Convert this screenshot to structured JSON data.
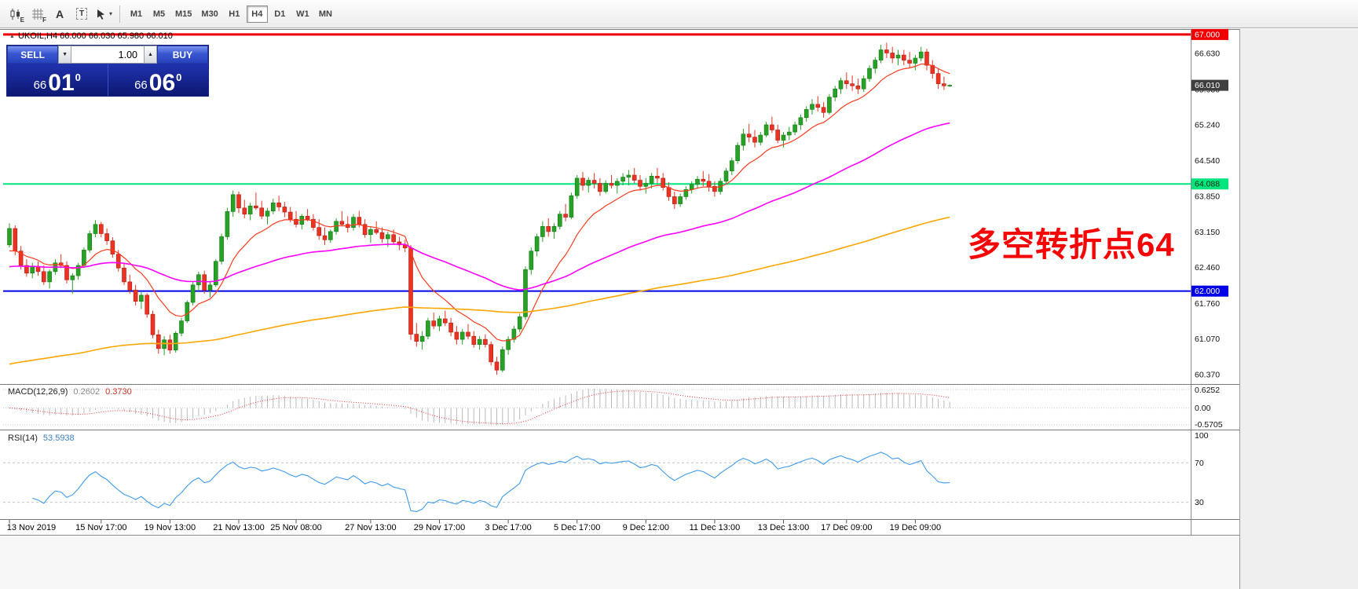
{
  "toolbar": {
    "icons": [
      {
        "name": "candlestick-chart",
        "kind": "candles",
        "badge": "E"
      },
      {
        "name": "grid",
        "kind": "grid",
        "badge": "F"
      },
      {
        "name": "text-tool",
        "kind": "letter",
        "glyph": "A"
      },
      {
        "name": "label-tool",
        "kind": "boxed",
        "glyph": "T"
      },
      {
        "name": "cursor-tool",
        "kind": "cursor",
        "caret": "▾"
      }
    ],
    "timeframes": [
      {
        "label": "M1",
        "active": false
      },
      {
        "label": "M5",
        "active": false
      },
      {
        "label": "M15",
        "active": false
      },
      {
        "label": "M30",
        "active": false
      },
      {
        "label": "H1",
        "active": false
      },
      {
        "label": "H4",
        "active": true
      },
      {
        "label": "D1",
        "active": false
      },
      {
        "label": "W1",
        "active": false
      },
      {
        "label": "MN",
        "active": false
      }
    ]
  },
  "chart_header": {
    "icon_glyph": "▲",
    "text": "UKOIL,H4  66.000 66.030 65.980 66.010"
  },
  "trade_panel": {
    "sell_label": "SELL",
    "buy_label": "BUY",
    "volume": "1.00",
    "spin_down_glyph": "▼",
    "spin_up_glyph": "▲",
    "sell_price": {
      "small": "66",
      "big": "01",
      "sup": "0"
    },
    "buy_price": {
      "small": "66",
      "big": "06",
      "sup": "0"
    }
  },
  "annotation": {
    "text": "多空转折点64",
    "color": "#f40606"
  },
  "price_axis": {
    "labels": [
      {
        "p": 66.63,
        "t": "66.630"
      },
      {
        "p": 65.93,
        "t": "65.930"
      },
      {
        "p": 65.24,
        "t": "65.240"
      },
      {
        "p": 64.54,
        "t": "64.540"
      },
      {
        "p": 63.85,
        "t": "63.850"
      },
      {
        "p": 63.15,
        "t": "63.150"
      },
      {
        "p": 62.46,
        "t": "62.460"
      },
      {
        "p": 61.76,
        "t": "61.760"
      },
      {
        "p": 61.07,
        "t": "61.070"
      },
      {
        "p": 60.37,
        "t": "60.370"
      }
    ],
    "hlines": [
      {
        "value": 67.0,
        "label": "67.000",
        "color": "#f00000",
        "label_bg": "#f00000",
        "label_fg": "#ffffff",
        "width": 3
      },
      {
        "value": 64.088,
        "label": "64.088",
        "color": "#00e57d",
        "label_bg": "#00e57d",
        "label_fg": "#042c12",
        "width": 2
      },
      {
        "value": 62.0,
        "label": "62.000",
        "color": "#0000e6",
        "label_bg": "#0000e6",
        "label_fg": "#ffffff",
        "width": 2
      }
    ],
    "current": {
      "value": 66.01,
      "label": "66.010",
      "bg": "#3f3f3f",
      "fg": "#ffffff"
    }
  },
  "macd_panel": {
    "title": "MACD(12,26,9)",
    "value_main": "0.2602",
    "value_signal": "0.3730",
    "axis_labels": [
      "0.6252",
      "0.00",
      "-0.5705"
    ],
    "histogram_color": "#b9b9b9",
    "signal_color": "#e23131"
  },
  "rsi_panel": {
    "title": "RSI(14)",
    "value": "53.5938",
    "axis_labels": [
      "100",
      "70",
      "30"
    ],
    "levels": [
      70,
      30
    ],
    "line_color": "#3d9be9"
  },
  "time_axis": {
    "labels": [
      {
        "text": "13 Nov 2019",
        "candle": 0
      },
      {
        "text": "15 Nov 17:00",
        "candle": 16
      },
      {
        "text": "19 Nov 13:00",
        "candle": 28
      },
      {
        "text": "21 Nov 13:00",
        "candle": 40
      },
      {
        "text": "25 Nov 08:00",
        "candle": 50
      },
      {
        "text": "27 Nov 13:00",
        "candle": 63
      },
      {
        "text": "29 Nov 17:00",
        "candle": 75
      },
      {
        "text": "3 Dec 17:00",
        "candle": 87
      },
      {
        "text": "5 Dec 17:00",
        "candle": 99
      },
      {
        "text": "9 Dec 12:00",
        "candle": 111
      },
      {
        "text": "11 Dec 13:00",
        "candle": 123
      },
      {
        "text": "13 Dec 13:00",
        "candle": 135
      },
      {
        "text": "17 Dec 09:00",
        "candle": 146
      },
      {
        "text": "19 Dec 09:00",
        "candle": 158
      }
    ]
  },
  "chart_data": {
    "type": "candlestick",
    "symbol": "UKOIL",
    "timeframe": "H4",
    "title": "UKOIL,H4",
    "ohlc_display": {
      "open": "66.000",
      "high": "66.030",
      "low": "65.980",
      "close": "66.010"
    },
    "ylim": [
      60.22,
      67.06
    ],
    "colors": {
      "up": "#27a227",
      "up_border": "#147814",
      "down": "#ea3323",
      "down_border": "#b01e12"
    },
    "moving_averages": [
      {
        "name": "fast-ma",
        "color": "#ff3b1e",
        "alpha": 0.16,
        "seed": 62.7,
        "width": 1.2
      },
      {
        "name": "mid-ma",
        "color": "#ff00ff",
        "alpha": 0.033,
        "seed": 62.45,
        "width": 1.6
      },
      {
        "name": "slow-ma",
        "color": "#ffa600",
        "alpha": 0.01,
        "seed": 60.55,
        "width": 1.6
      }
    ],
    "indicators": {
      "macd": "12,26,9",
      "rsi": 14
    },
    "ohlc": [
      [
        62.9,
        63.32,
        62.85,
        63.22
      ],
      [
        63.22,
        63.28,
        62.7,
        62.78
      ],
      [
        62.78,
        62.88,
        62.42,
        62.5
      ],
      [
        62.5,
        62.62,
        62.28,
        62.35
      ],
      [
        62.35,
        62.55,
        62.25,
        62.48
      ],
      [
        62.48,
        62.58,
        62.3,
        62.38
      ],
      [
        62.38,
        62.5,
        62.12,
        62.18
      ],
      [
        62.18,
        62.42,
        62.05,
        62.38
      ],
      [
        62.38,
        62.62,
        62.32,
        62.55
      ],
      [
        62.55,
        62.72,
        62.45,
        62.5
      ],
      [
        62.5,
        62.58,
        62.15,
        62.22
      ],
      [
        62.22,
        62.35,
        61.95,
        62.3
      ],
      [
        62.3,
        62.55,
        62.22,
        62.5
      ],
      [
        62.5,
        62.85,
        62.45,
        62.8
      ],
      [
        62.8,
        63.18,
        62.75,
        63.12
      ],
      [
        63.12,
        63.38,
        63.05,
        63.3
      ],
      [
        63.3,
        63.35,
        63.05,
        63.12
      ],
      [
        63.12,
        63.22,
        62.9,
        62.98
      ],
      [
        62.98,
        63.05,
        62.65,
        62.72
      ],
      [
        62.72,
        62.8,
        62.38,
        62.45
      ],
      [
        62.45,
        62.55,
        62.12,
        62.18
      ],
      [
        62.18,
        62.32,
        61.95,
        62.02
      ],
      [
        62.02,
        62.12,
        61.72,
        61.8
      ],
      [
        61.8,
        61.98,
        61.65,
        61.92
      ],
      [
        61.92,
        61.96,
        61.48,
        61.55
      ],
      [
        61.55,
        61.62,
        61.08,
        61.15
      ],
      [
        61.15,
        61.25,
        60.78,
        60.88
      ],
      [
        60.88,
        61.12,
        60.75,
        61.05
      ],
      [
        61.05,
        61.15,
        60.78,
        60.85
      ],
      [
        60.85,
        61.22,
        60.8,
        61.18
      ],
      [
        61.18,
        61.48,
        61.12,
        61.42
      ],
      [
        61.42,
        61.82,
        61.38,
        61.78
      ],
      [
        61.78,
        62.18,
        61.72,
        62.12
      ],
      [
        62.12,
        62.38,
        62.0,
        62.32
      ],
      [
        62.32,
        62.4,
        61.95,
        62.02
      ],
      [
        62.02,
        62.18,
        61.88,
        62.12
      ],
      [
        62.12,
        62.62,
        62.08,
        62.58
      ],
      [
        62.58,
        63.12,
        62.52,
        63.06
      ],
      [
        63.06,
        63.62,
        63.0,
        63.55
      ],
      [
        63.55,
        63.96,
        63.45,
        63.88
      ],
      [
        63.88,
        63.94,
        63.52,
        63.62
      ],
      [
        63.62,
        63.78,
        63.42,
        63.5
      ],
      [
        63.5,
        63.72,
        63.38,
        63.66
      ],
      [
        63.66,
        63.92,
        63.58,
        63.62
      ],
      [
        63.62,
        63.76,
        63.4,
        63.46
      ],
      [
        63.46,
        63.62,
        63.3,
        63.56
      ],
      [
        63.56,
        63.8,
        63.5,
        63.72
      ],
      [
        63.72,
        63.86,
        63.56,
        63.64
      ],
      [
        63.64,
        63.74,
        63.44,
        63.54
      ],
      [
        63.54,
        63.64,
        63.34,
        63.4
      ],
      [
        63.4,
        63.56,
        63.24,
        63.3
      ],
      [
        63.3,
        63.5,
        63.2,
        63.46
      ],
      [
        63.46,
        63.6,
        63.36,
        63.4
      ],
      [
        63.4,
        63.5,
        63.18,
        63.24
      ],
      [
        63.24,
        63.4,
        63.0,
        63.08
      ],
      [
        63.08,
        63.24,
        62.9,
        63.0
      ],
      [
        63.0,
        63.2,
        62.94,
        63.16
      ],
      [
        63.16,
        63.42,
        63.1,
        63.36
      ],
      [
        63.36,
        63.56,
        63.26,
        63.3
      ],
      [
        63.3,
        63.46,
        63.14,
        63.24
      ],
      [
        63.24,
        63.5,
        63.18,
        63.44
      ],
      [
        63.44,
        63.56,
        63.24,
        63.3
      ],
      [
        63.3,
        63.4,
        63.04,
        63.1
      ],
      [
        63.1,
        63.26,
        62.94,
        63.2
      ],
      [
        63.2,
        63.36,
        63.1,
        63.14
      ],
      [
        63.14,
        63.24,
        62.94,
        63.02
      ],
      [
        63.02,
        63.16,
        62.86,
        63.1
      ],
      [
        63.1,
        63.2,
        62.9,
        62.96
      ],
      [
        62.96,
        63.06,
        62.8,
        62.9
      ],
      [
        62.9,
        63.0,
        62.76,
        62.84
      ],
      [
        62.84,
        62.9,
        61.05,
        61.16
      ],
      [
        61.16,
        61.38,
        60.92,
        61.02
      ],
      [
        61.02,
        61.22,
        60.86,
        61.12
      ],
      [
        61.12,
        61.48,
        61.06,
        61.42
      ],
      [
        61.42,
        61.58,
        61.26,
        61.32
      ],
      [
        61.32,
        61.52,
        61.22,
        61.46
      ],
      [
        61.46,
        61.62,
        61.32,
        61.38
      ],
      [
        61.38,
        61.48,
        61.12,
        61.2
      ],
      [
        61.2,
        61.32,
        60.96,
        61.06
      ],
      [
        61.06,
        61.26,
        60.96,
        61.2
      ],
      [
        61.2,
        61.36,
        61.06,
        61.12
      ],
      [
        61.12,
        61.22,
        60.9,
        60.96
      ],
      [
        60.96,
        61.12,
        60.86,
        61.06
      ],
      [
        61.06,
        61.16,
        60.9,
        60.96
      ],
      [
        60.96,
        61.02,
        60.55,
        60.62
      ],
      [
        60.62,
        60.72,
        60.37,
        60.46
      ],
      [
        60.46,
        60.92,
        60.42,
        60.86
      ],
      [
        60.86,
        61.12,
        60.76,
        61.06
      ],
      [
        61.06,
        61.32,
        61.0,
        61.26
      ],
      [
        61.26,
        61.56,
        61.2,
        61.5
      ],
      [
        61.5,
        62.48,
        61.44,
        62.42
      ],
      [
        62.42,
        62.85,
        62.32,
        62.78
      ],
      [
        62.78,
        63.12,
        62.68,
        63.06
      ],
      [
        63.06,
        63.36,
        62.96,
        63.26
      ],
      [
        63.26,
        63.42,
        63.06,
        63.16
      ],
      [
        63.16,
        63.32,
        63.02,
        63.26
      ],
      [
        63.26,
        63.56,
        63.2,
        63.5
      ],
      [
        63.5,
        63.7,
        63.36,
        63.44
      ],
      [
        63.44,
        63.92,
        63.4,
        63.86
      ],
      [
        63.86,
        64.26,
        63.8,
        64.2
      ],
      [
        64.2,
        64.32,
        63.96,
        64.06
      ],
      [
        64.06,
        64.22,
        63.92,
        64.16
      ],
      [
        64.16,
        64.3,
        64.0,
        64.1
      ],
      [
        64.1,
        64.2,
        63.86,
        63.94
      ],
      [
        63.94,
        64.16,
        63.9,
        64.1
      ],
      [
        64.1,
        64.26,
        64.0,
        64.06
      ],
      [
        64.06,
        64.2,
        63.9,
        64.14
      ],
      [
        64.14,
        64.3,
        64.06,
        64.22
      ],
      [
        64.22,
        64.36,
        64.06,
        64.26
      ],
      [
        64.26,
        64.4,
        64.1,
        64.16
      ],
      [
        64.16,
        64.26,
        63.96,
        64.04
      ],
      [
        64.04,
        64.2,
        63.9,
        64.1
      ],
      [
        64.1,
        64.3,
        64.0,
        64.24
      ],
      [
        64.24,
        64.4,
        64.1,
        64.2
      ],
      [
        64.2,
        64.3,
        63.96,
        64.02
      ],
      [
        64.02,
        64.12,
        63.76,
        63.84
      ],
      [
        63.84,
        63.94,
        63.6,
        63.7
      ],
      [
        63.7,
        63.9,
        63.64,
        63.84
      ],
      [
        63.84,
        64.04,
        63.78,
        63.98
      ],
      [
        63.98,
        64.14,
        63.9,
        64.08
      ],
      [
        64.08,
        64.24,
        64.0,
        64.18
      ],
      [
        64.18,
        64.34,
        64.04,
        64.14
      ],
      [
        64.14,
        64.28,
        63.94,
        64.04
      ],
      [
        64.04,
        64.14,
        63.84,
        63.94
      ],
      [
        63.94,
        64.2,
        63.88,
        64.14
      ],
      [
        64.14,
        64.4,
        64.08,
        64.34
      ],
      [
        64.34,
        64.6,
        64.26,
        64.54
      ],
      [
        64.54,
        64.9,
        64.48,
        64.84
      ],
      [
        64.84,
        65.16,
        64.74,
        65.06
      ],
      [
        65.06,
        65.26,
        64.9,
        65.0
      ],
      [
        65.0,
        65.14,
        64.8,
        64.9
      ],
      [
        64.9,
        65.1,
        64.84,
        65.04
      ],
      [
        65.04,
        65.3,
        65.0,
        65.24
      ],
      [
        65.24,
        65.4,
        65.08,
        65.14
      ],
      [
        65.14,
        65.24,
        64.88,
        64.94
      ],
      [
        64.94,
        65.1,
        64.8,
        65.04
      ],
      [
        65.04,
        65.2,
        64.94,
        65.1
      ],
      [
        65.1,
        65.3,
        65.04,
        65.24
      ],
      [
        65.24,
        65.44,
        65.14,
        65.38
      ],
      [
        65.38,
        65.6,
        65.3,
        65.54
      ],
      [
        65.54,
        65.74,
        65.44,
        65.64
      ],
      [
        65.64,
        65.8,
        65.5,
        65.58
      ],
      [
        65.58,
        65.68,
        65.38,
        65.48
      ],
      [
        65.48,
        65.84,
        65.44,
        65.78
      ],
      [
        65.78,
        66.0,
        65.7,
        65.94
      ],
      [
        65.94,
        66.16,
        65.84,
        66.1
      ],
      [
        66.1,
        66.26,
        65.94,
        66.04
      ],
      [
        66.04,
        66.2,
        65.9,
        66.0
      ],
      [
        66.0,
        66.14,
        65.84,
        65.94
      ],
      [
        65.94,
        66.2,
        65.88,
        66.14
      ],
      [
        66.14,
        66.4,
        66.08,
        66.34
      ],
      [
        66.34,
        66.56,
        66.24,
        66.5
      ],
      [
        66.5,
        66.8,
        66.44,
        66.7
      ],
      [
        66.7,
        66.84,
        66.54,
        66.64
      ],
      [
        66.64,
        66.76,
        66.44,
        66.54
      ],
      [
        66.54,
        66.7,
        66.4,
        66.6
      ],
      [
        66.6,
        66.7,
        66.4,
        66.5
      ],
      [
        66.5,
        66.66,
        66.34,
        66.44
      ],
      [
        66.44,
        66.6,
        66.3,
        66.54
      ],
      [
        66.54,
        66.76,
        66.48,
        66.66
      ],
      [
        66.66,
        66.72,
        66.3,
        66.4
      ],
      [
        66.4,
        66.5,
        66.14,
        66.24
      ],
      [
        66.24,
        66.34,
        65.94,
        66.04
      ],
      [
        66.04,
        66.18,
        65.92,
        66.0
      ],
      [
        66.0,
        66.03,
        65.98,
        66.01
      ]
    ]
  }
}
